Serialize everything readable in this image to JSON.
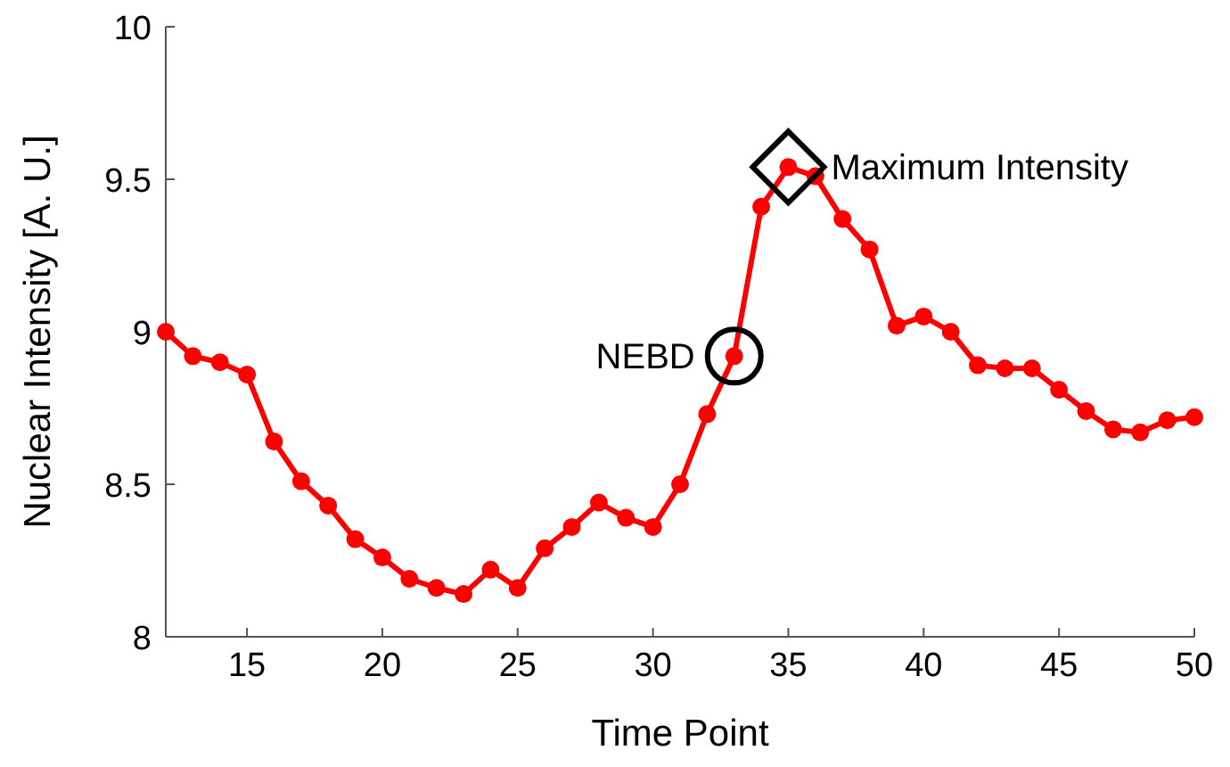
{
  "chart_data": {
    "type": "line",
    "xlabel": "Time Point",
    "ylabel": "Nuclear Intensity [A. U.]",
    "x": [
      12,
      13,
      14,
      15,
      16,
      17,
      18,
      19,
      20,
      21,
      22,
      23,
      24,
      25,
      26,
      27,
      28,
      29,
      30,
      31,
      32,
      33,
      34,
      35,
      36,
      37,
      38,
      39,
      40,
      41,
      42,
      43,
      44,
      45,
      46,
      47,
      48,
      49,
      50
    ],
    "series": [
      {
        "color": "#ff0000",
        "values": [
          9.0,
          8.92,
          8.9,
          8.86,
          8.64,
          8.51,
          8.43,
          8.32,
          8.26,
          8.19,
          8.16,
          8.14,
          8.22,
          8.16,
          8.29,
          8.36,
          8.44,
          8.39,
          8.36,
          8.5,
          8.73,
          8.92,
          9.41,
          9.54,
          9.51,
          9.37,
          9.27,
          9.02,
          9.05,
          9.0,
          8.89,
          8.88,
          8.88,
          8.81,
          8.74,
          8.68,
          8.67,
          8.71,
          8.72
        ]
      }
    ],
    "xlim": [
      12,
      50
    ],
    "xticks": [
      15,
      20,
      25,
      30,
      35,
      40,
      45,
      50
    ],
    "ylim": [
      8,
      10
    ],
    "yticks": [
      8,
      8.5,
      9,
      9.5,
      10
    ],
    "marker": "circle",
    "line_style": "solid",
    "grid": false,
    "annotations": [
      {
        "text": "NEBD",
        "x": 33,
        "y": 8.92
      },
      {
        "text": "Maximum Intensity",
        "x": 35,
        "y": 9.54
      }
    ]
  }
}
